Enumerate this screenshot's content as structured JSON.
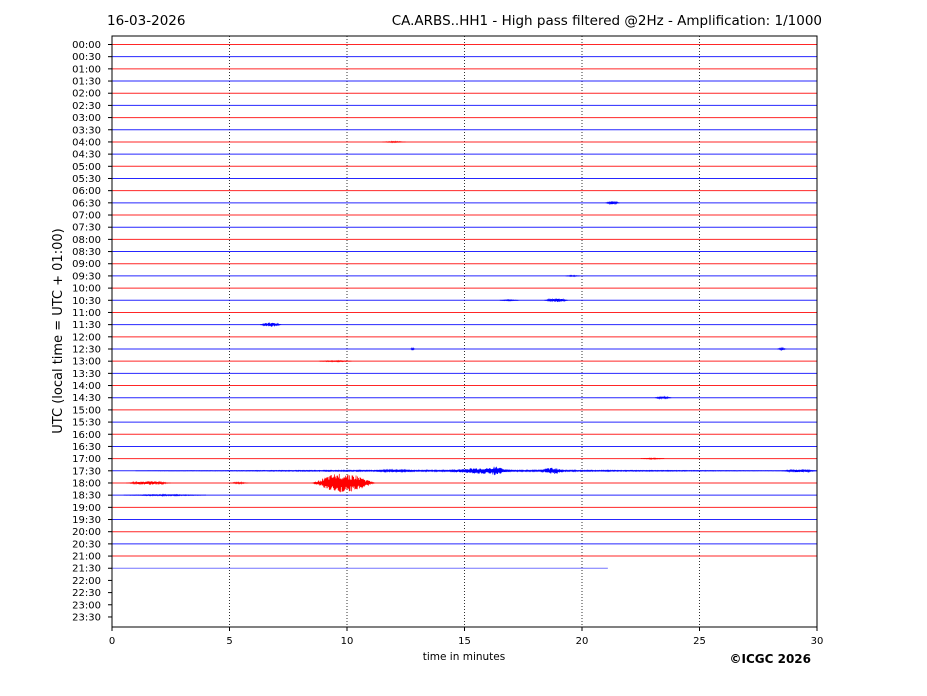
{
  "chart_data": {
    "type": "line",
    "date": "16-03-2026",
    "title": "CA.ARBS..HH1 - High pass filtered @2Hz - Amplification: 1/1000",
    "xlabel": "time in minutes",
    "ylabel": "UTC (local time = UTC + 01:00)",
    "copyright": "©ICGC 2026",
    "xlim": [
      0,
      30
    ],
    "x_ticks": [
      0,
      5,
      10,
      15,
      20,
      25,
      30
    ],
    "grid": "vertical dotted lines at x ticks",
    "colors": {
      "even_rows": "#ff0000",
      "odd_rows": "#0000ff"
    },
    "rows": [
      "00:00",
      "00:30",
      "01:00",
      "01:30",
      "02:00",
      "02:30",
      "03:00",
      "03:30",
      "04:00",
      "04:30",
      "05:00",
      "05:30",
      "06:00",
      "06:30",
      "07:00",
      "07:30",
      "08:00",
      "08:30",
      "09:00",
      "09:30",
      "10:00",
      "10:30",
      "11:00",
      "11:30",
      "12:00",
      "12:30",
      "13:00",
      "13:30",
      "14:00",
      "14:30",
      "15:00",
      "15:30",
      "16:00",
      "16:30",
      "17:00",
      "17:30",
      "18:00",
      "18:30",
      "19:00",
      "19:30",
      "20:00",
      "20:30",
      "21:00",
      "21:30",
      "22:00",
      "22:30",
      "23:00",
      "23:30"
    ],
    "trace_end_minutes": [
      30,
      30,
      30,
      30,
      30,
      30,
      30,
      30,
      30,
      30,
      30,
      30,
      30,
      30,
      30,
      30,
      30,
      30,
      30,
      30,
      30,
      30,
      30,
      30,
      30,
      30,
      30,
      30,
      30,
      30,
      30,
      30,
      30,
      30,
      30,
      30,
      30,
      30,
      30,
      30,
      30,
      30,
      30,
      21.1,
      null,
      null,
      null,
      null
    ],
    "events": [
      {
        "row": "04:00",
        "from": 11.5,
        "to": 12.5,
        "amplitude": 0.6
      },
      {
        "row": "06:30",
        "from": 21.0,
        "to": 21.6,
        "amplitude": 1.5
      },
      {
        "row": "09:30",
        "from": 19.3,
        "to": 19.9,
        "amplitude": 0.6
      },
      {
        "row": "10:30",
        "from": 18.4,
        "to": 19.4,
        "amplitude": 1.8
      },
      {
        "row": "10:30",
        "from": 16.5,
        "to": 17.3,
        "amplitude": 0.6
      },
      {
        "row": "11:30",
        "from": 6.3,
        "to": 7.2,
        "amplitude": 2.2
      },
      {
        "row": "12:30",
        "from": 12.7,
        "to": 12.9,
        "amplitude": 1.2
      },
      {
        "row": "12:30",
        "from": 28.3,
        "to": 28.7,
        "amplitude": 1.2
      },
      {
        "row": "13:00",
        "from": 8.8,
        "to": 10.2,
        "amplitude": 0.6
      },
      {
        "row": "14:30",
        "from": 23.1,
        "to": 23.8,
        "amplitude": 1.2
      },
      {
        "row": "17:00",
        "from": 22.5,
        "to": 23.5,
        "amplitude": 0.5
      },
      {
        "row": "17:30",
        "from": 1.0,
        "to": 30.0,
        "amplitude": 0.7
      },
      {
        "row": "17:30",
        "from": 14.2,
        "to": 17.2,
        "amplitude": 3.0
      },
      {
        "row": "17:30",
        "from": 15.8,
        "to": 16.8,
        "amplitude": 4.5
      },
      {
        "row": "17:30",
        "from": 18.2,
        "to": 19.3,
        "amplitude": 3.5
      },
      {
        "row": "17:30",
        "from": 11.0,
        "to": 13.0,
        "amplitude": 1.2
      },
      {
        "row": "17:30",
        "from": 28.5,
        "to": 30.0,
        "amplitude": 1.5
      },
      {
        "row": "18:00",
        "from": 0.6,
        "to": 2.5,
        "amplitude": 1.8
      },
      {
        "row": "18:00",
        "from": 8.5,
        "to": 11.2,
        "amplitude": 10.0
      },
      {
        "row": "18:00",
        "from": 5.0,
        "to": 5.8,
        "amplitude": 0.8
      },
      {
        "row": "18:30",
        "from": 0.5,
        "to": 4.0,
        "amplitude": 0.6
      }
    ]
  }
}
